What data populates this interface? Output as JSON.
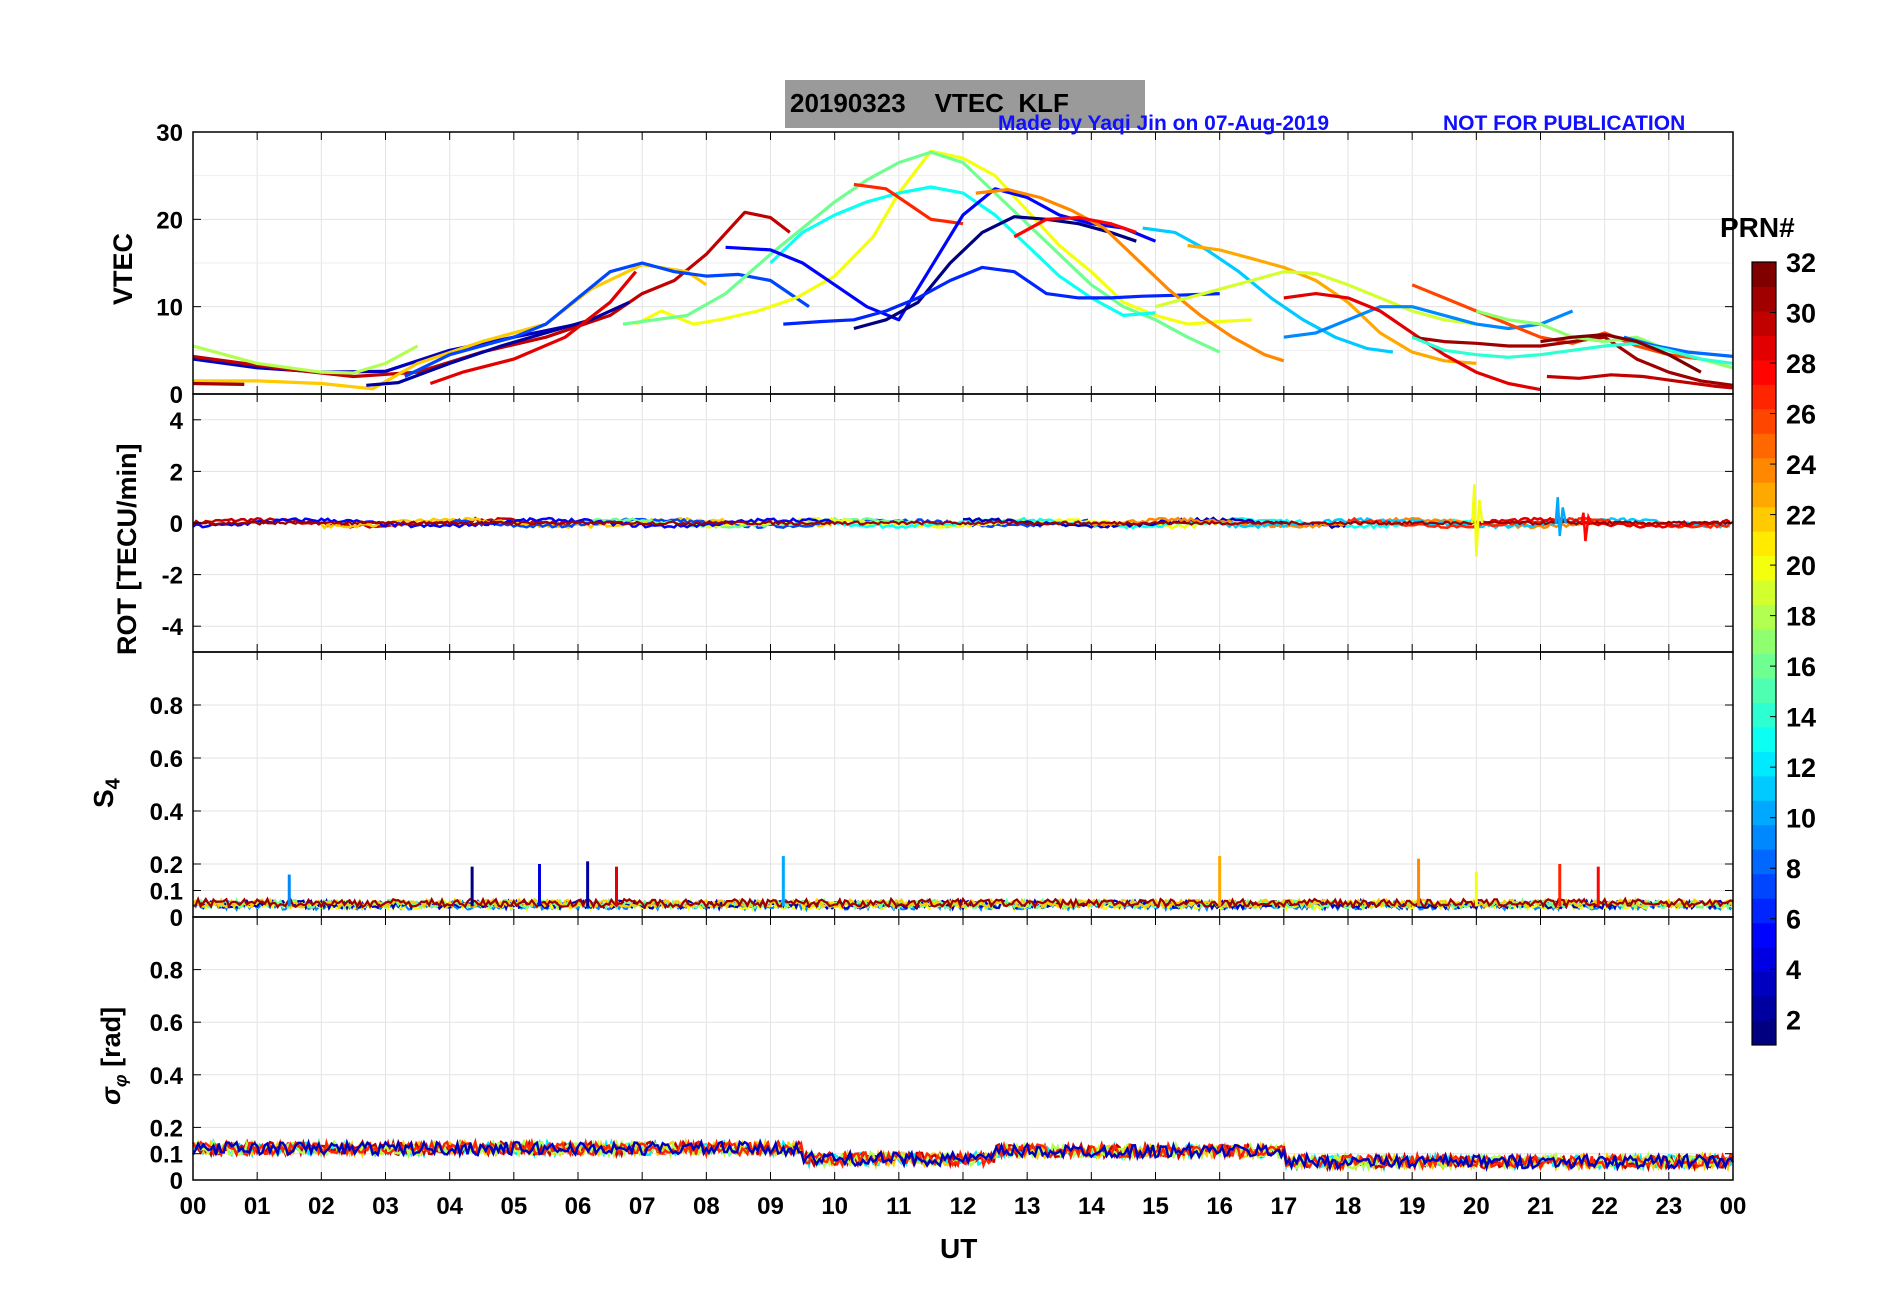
{
  "title": {
    "date": "20190323",
    "label": "VTEC  KLF"
  },
  "credit": {
    "author": "Made by Yaqi Jin on 07-Aug-2019",
    "notice": "NOT FOR PUBLICATION"
  },
  "colorbar": {
    "title": "PRN#",
    "ticks": [
      2,
      4,
      6,
      8,
      10,
      12,
      14,
      16,
      18,
      20,
      22,
      24,
      26,
      28,
      30,
      32
    ],
    "range": [
      1,
      32
    ],
    "colormap": "jet"
  },
  "x_axis": {
    "label": "UT",
    "ticks": [
      "00",
      "01",
      "02",
      "03",
      "04",
      "05",
      "06",
      "07",
      "08",
      "09",
      "10",
      "11",
      "12",
      "13",
      "14",
      "15",
      "16",
      "17",
      "18",
      "19",
      "20",
      "21",
      "22",
      "23",
      "00"
    ]
  },
  "chart_data": [
    {
      "type": "line",
      "panel": "vtec",
      "ylabel": "VTEC",
      "ylim": [
        0,
        30
      ],
      "yticks": [
        "0",
        "10",
        "20",
        "30"
      ],
      "xlim": [
        0,
        24
      ],
      "grid": true,
      "series": [
        {
          "prn": 3,
          "x": [
            0,
            1,
            2,
            3,
            4,
            5,
            6
          ],
          "y": [
            4,
            3,
            2.5,
            2.6,
            5,
            6.5,
            8
          ]
        },
        {
          "prn": 30,
          "x": [
            0,
            1.5,
            2.5,
            3.5,
            4.5,
            5.5,
            6.5,
            7.0,
            7.5,
            8.0,
            8.6,
            9.0,
            9.3
          ],
          "y": [
            4.3,
            2.8,
            2.0,
            2.5,
            4.8,
            6.5,
            9.0,
            11.5,
            13.0,
            16.0,
            20.8,
            20.2,
            18.5
          ]
        },
        {
          "prn": 22,
          "x": [
            0,
            1,
            2,
            2.8,
            3.5,
            4.5,
            5.5,
            6.2,
            7.0,
            7.7,
            8.0
          ],
          "y": [
            1.5,
            1.5,
            1.2,
            0.6,
            3.5,
            6.0,
            8.0,
            12.0,
            14.8,
            14.0,
            12.5
          ]
        },
        {
          "prn": 18,
          "x": [
            0,
            1,
            2,
            2.5,
            3.0,
            3.5
          ],
          "y": [
            5.5,
            3.5,
            2.5,
            2.4,
            3.5,
            5.5
          ]
        },
        {
          "prn": 31,
          "x": [
            0,
            0.8
          ],
          "y": [
            1.2,
            1.1
          ]
        },
        {
          "prn": 7,
          "x": [
            3.3,
            4.0,
            5.0,
            5.5,
            6.0,
            6.5,
            7.0,
            7.5,
            8.0,
            8.5,
            9.0,
            9.6
          ],
          "y": [
            2.0,
            4.5,
            6.5,
            8.0,
            11.0,
            14.0,
            15.0,
            14.0,
            13.5,
            13.7,
            13.0,
            10.0
          ]
        },
        {
          "prn": 2,
          "x": [
            2.7,
            3.2,
            4.0,
            4.8,
            5.5,
            6.2,
            6.8
          ],
          "y": [
            1.0,
            1.3,
            3.5,
            5.5,
            7.0,
            8.5,
            10.5
          ]
        },
        {
          "prn": 29,
          "x": [
            3.7,
            4.2,
            5.0,
            5.8,
            6.5,
            6.9
          ],
          "y": [
            1.2,
            2.5,
            4.0,
            6.5,
            10.5,
            14.0
          ]
        },
        {
          "prn": 20,
          "x": [
            6.9,
            7.3,
            7.8,
            8.2,
            8.8,
            9.4,
            10.0,
            10.6,
            11.0,
            11.5,
            12.0,
            12.5,
            13.0,
            13.5,
            14.0,
            14.5,
            15.0,
            15.5,
            16.0,
            16.5
          ],
          "y": [
            8.0,
            9.5,
            8.0,
            8.5,
            9.5,
            11.0,
            13.5,
            18.0,
            23.0,
            27.8,
            27.0,
            25.0,
            21.0,
            17.0,
            14.0,
            10.5,
            9.0,
            8.0,
            8.3,
            8.5
          ]
        },
        {
          "prn": 16,
          "x": [
            6.7,
            7.2,
            7.7,
            8.3,
            9.0,
            9.5,
            10.0,
            10.5,
            11.0,
            11.5,
            12.0,
            12.5,
            13.0,
            13.5,
            14.0,
            14.5,
            15.0,
            15.5,
            16.0
          ],
          "y": [
            8.0,
            8.5,
            9.0,
            11.5,
            16.0,
            19.0,
            22.0,
            24.5,
            26.5,
            27.7,
            26.5,
            23.0,
            19.5,
            16.0,
            12.5,
            10.0,
            8.5,
            6.5,
            4.8
          ]
        },
        {
          "prn": 13,
          "x": [
            9.0,
            9.5,
            10.0,
            10.5,
            11.0,
            11.5,
            12.0,
            12.5,
            13.0,
            13.5,
            14.0,
            14.5,
            15.0
          ],
          "y": [
            15.0,
            18.5,
            20.5,
            22.0,
            23.0,
            23.7,
            23.0,
            20.5,
            17.0,
            13.5,
            11.0,
            9.0,
            9.3
          ]
        },
        {
          "prn": 27,
          "x": [
            10.3,
            10.8,
            11.5,
            12.0
          ],
          "y": [
            24.0,
            23.5,
            20.0,
            19.5
          ]
        },
        {
          "prn": 5,
          "x": [
            8.3,
            9.0,
            9.5,
            10.0,
            10.5,
            11.0,
            11.5,
            12.0,
            12.5,
            13.0,
            13.5,
            14.0,
            14.5,
            15.0
          ],
          "y": [
            16.8,
            16.5,
            15.0,
            12.5,
            10.0,
            8.5,
            14.5,
            20.5,
            23.5,
            22.5,
            20.5,
            19.5,
            19.0,
            17.5
          ]
        },
        {
          "prn": 1,
          "x": [
            10.3,
            10.8,
            11.3,
            11.8,
            12.3,
            12.8,
            13.3,
            13.8,
            14.3,
            14.7
          ],
          "y": [
            7.5,
            8.5,
            10.5,
            15.0,
            18.5,
            20.3,
            20.0,
            19.5,
            18.5,
            17.5
          ]
        },
        {
          "prn": 6,
          "x": [
            9.2,
            9.8,
            10.3,
            10.8,
            11.3,
            11.8,
            12.3,
            12.8,
            13.3,
            13.8,
            14.3,
            14.8,
            15.3,
            16.0
          ],
          "y": [
            8.0,
            8.3,
            8.5,
            9.5,
            11.0,
            13.0,
            14.5,
            14.0,
            11.5,
            11.0,
            11.0,
            11.2,
            11.3,
            11.5
          ]
        },
        {
          "prn": 24,
          "x": [
            12.2,
            12.7,
            13.2,
            13.7,
            14.2,
            14.7,
            15.2,
            15.7,
            16.2,
            16.7,
            17.0
          ],
          "y": [
            23.0,
            23.4,
            22.5,
            21.0,
            19.0,
            15.5,
            12.0,
            9.0,
            6.5,
            4.5,
            3.8
          ]
        },
        {
          "prn": 28,
          "x": [
            12.8,
            13.3,
            13.8,
            14.3,
            14.7
          ],
          "y": [
            18.0,
            20.0,
            20.2,
            19.5,
            18.5
          ]
        },
        {
          "prn": 11,
          "x": [
            14.8,
            15.3,
            15.8,
            16.3,
            16.8,
            17.3,
            17.8,
            18.3,
            18.7
          ],
          "y": [
            19.0,
            18.5,
            16.5,
            14.0,
            11.0,
            8.5,
            6.5,
            5.2,
            4.8
          ]
        },
        {
          "prn": 23,
          "x": [
            15.5,
            16.0,
            16.5,
            17.0,
            17.5,
            18.0,
            18.5,
            19.0,
            19.5,
            20.0
          ],
          "y": [
            17.0,
            16.5,
            15.5,
            14.5,
            13.0,
            10.5,
            7.0,
            4.8,
            3.8,
            3.5
          ]
        },
        {
          "prn": 19,
          "x": [
            15.0,
            15.5,
            16.0,
            16.5,
            17.0,
            17.5,
            18.0,
            18.5,
            19.0,
            19.5,
            20.0
          ],
          "y": [
            10.0,
            11.0,
            12.0,
            13.0,
            14.0,
            13.8,
            12.5,
            11.0,
            9.5,
            8.5,
            8.0
          ]
        },
        {
          "prn": 9,
          "x": [
            17.0,
            17.5,
            18.0,
            18.5,
            19.0,
            19.5,
            20.0,
            20.5,
            21.0,
            21.5
          ],
          "y": [
            6.5,
            7.0,
            8.5,
            10.0,
            10.0,
            9.0,
            8.0,
            7.5,
            8.0,
            9.5
          ]
        },
        {
          "prn": 26,
          "x": [
            19.0,
            19.5,
            20.0,
            20.5,
            21.0,
            21.5,
            22.0,
            22.5,
            23.0,
            23.5
          ],
          "y": [
            12.5,
            11.0,
            9.5,
            8.0,
            6.5,
            5.8,
            7.0,
            5.5,
            4.5,
            4.0
          ]
        },
        {
          "prn": 29,
          "x": [
            17.0,
            17.5,
            18.0,
            18.5,
            19.0,
            19.5,
            20.0,
            20.5,
            21.0
          ],
          "y": [
            11.0,
            11.5,
            11.0,
            9.5,
            7.0,
            4.5,
            2.5,
            1.2,
            0.5
          ]
        },
        {
          "prn": 31,
          "x": [
            19.0,
            19.5,
            20.0,
            20.5,
            21.0,
            21.5,
            22.0,
            22.5,
            23.0,
            23.5,
            24.0
          ],
          "y": [
            6.5,
            6.0,
            5.8,
            5.5,
            5.5,
            6.0,
            6.5,
            4.0,
            2.5,
            1.5,
            1.0
          ]
        },
        {
          "prn": 17,
          "x": [
            20.0,
            20.5,
            21.0,
            21.5,
            22.0,
            22.5,
            23.0,
            23.5,
            24.0
          ],
          "y": [
            9.5,
            8.5,
            8.0,
            6.5,
            6.0,
            6.5,
            5.0,
            4.0,
            3.0
          ]
        },
        {
          "prn": 8,
          "x": [
            22.3,
            22.8,
            23.3,
            24.0
          ],
          "y": [
            6.5,
            5.5,
            4.8,
            4.3
          ]
        },
        {
          "prn": 14,
          "x": [
            19.0,
            19.5,
            20.0,
            20.5,
            21.0,
            21.5,
            22.0,
            22.5,
            23.0,
            23.5,
            24.0
          ],
          "y": [
            6.5,
            5.0,
            4.5,
            4.2,
            4.5,
            5.0,
            5.5,
            5.8,
            5.0,
            4.0,
            3.5
          ]
        },
        {
          "prn": 32,
          "x": [
            21.0,
            21.5,
            22.0,
            22.5,
            23.0,
            23.5
          ],
          "y": [
            6.0,
            6.5,
            6.8,
            6.0,
            4.5,
            2.5
          ]
        },
        {
          "prn": 30,
          "x": [
            21.1,
            21.6,
            22.1,
            22.6,
            23.1,
            23.7,
            24.0
          ],
          "y": [
            2.0,
            1.8,
            2.2,
            2.0,
            1.5,
            0.9,
            0.7
          ]
        }
      ]
    },
    {
      "type": "line",
      "panel": "rot",
      "ylabel": "ROT [TECU/min]",
      "ylim": [
        -5,
        5
      ],
      "yticks": [
        "-4",
        "-2",
        "0",
        "2",
        "4"
      ],
      "xlim": [
        0,
        24
      ],
      "grid": true,
      "baseline": 0,
      "noise_amplitude": 0.15,
      "spikes": [
        {
          "prn": 20,
          "x": 20.0,
          "y_max": 1.5,
          "y_min": -1.3
        },
        {
          "prn": 10,
          "x": 21.3,
          "y_max": 1.0,
          "y_min": -0.5
        },
        {
          "prn": 28,
          "x": 21.7,
          "y_max": 0.4,
          "y_min": -0.7
        }
      ]
    },
    {
      "type": "line",
      "panel": "s4",
      "ylabel": "S4",
      "ylim": [
        0,
        1
      ],
      "yticks": [
        "0",
        "0.1",
        "0.2",
        "0.4",
        "0.6",
        "0.8"
      ],
      "xlim": [
        0,
        24
      ],
      "grid": true,
      "baseline": 0.04,
      "spikes": [
        {
          "prn": 9,
          "x": 1.5,
          "y": 0.16
        },
        {
          "prn": 1,
          "x": 4.35,
          "y": 0.19
        },
        {
          "prn": 4,
          "x": 5.4,
          "y": 0.2
        },
        {
          "prn": 2,
          "x": 6.15,
          "y": 0.21
        },
        {
          "prn": 29,
          "x": 6.6,
          "y": 0.19
        },
        {
          "prn": 10,
          "x": 9.2,
          "y": 0.23
        },
        {
          "prn": 23,
          "x": 16.0,
          "y": 0.23
        },
        {
          "prn": 24,
          "x": 19.1,
          "y": 0.22
        },
        {
          "prn": 20,
          "x": 20.0,
          "y": 0.17
        },
        {
          "prn": 27,
          "x": 21.3,
          "y": 0.2
        },
        {
          "prn": 28,
          "x": 21.9,
          "y": 0.19
        }
      ]
    },
    {
      "type": "line",
      "panel": "sigma_phi",
      "ylabel": "σφ [rad]",
      "ylim": [
        0,
        1
      ],
      "yticks": [
        "0",
        "0.1",
        "0.2",
        "0.4",
        "0.6",
        "0.8"
      ],
      "xlim": [
        0,
        24
      ],
      "grid": true,
      "baseline_segments": [
        {
          "x0": 0,
          "x1": 9.5,
          "y": 0.12
        },
        {
          "x0": 9.5,
          "x1": 12.5,
          "y": 0.08
        },
        {
          "x0": 12.5,
          "x1": 17.0,
          "y": 0.11
        },
        {
          "x0": 17.0,
          "x1": 24,
          "y": 0.07
        }
      ]
    }
  ]
}
